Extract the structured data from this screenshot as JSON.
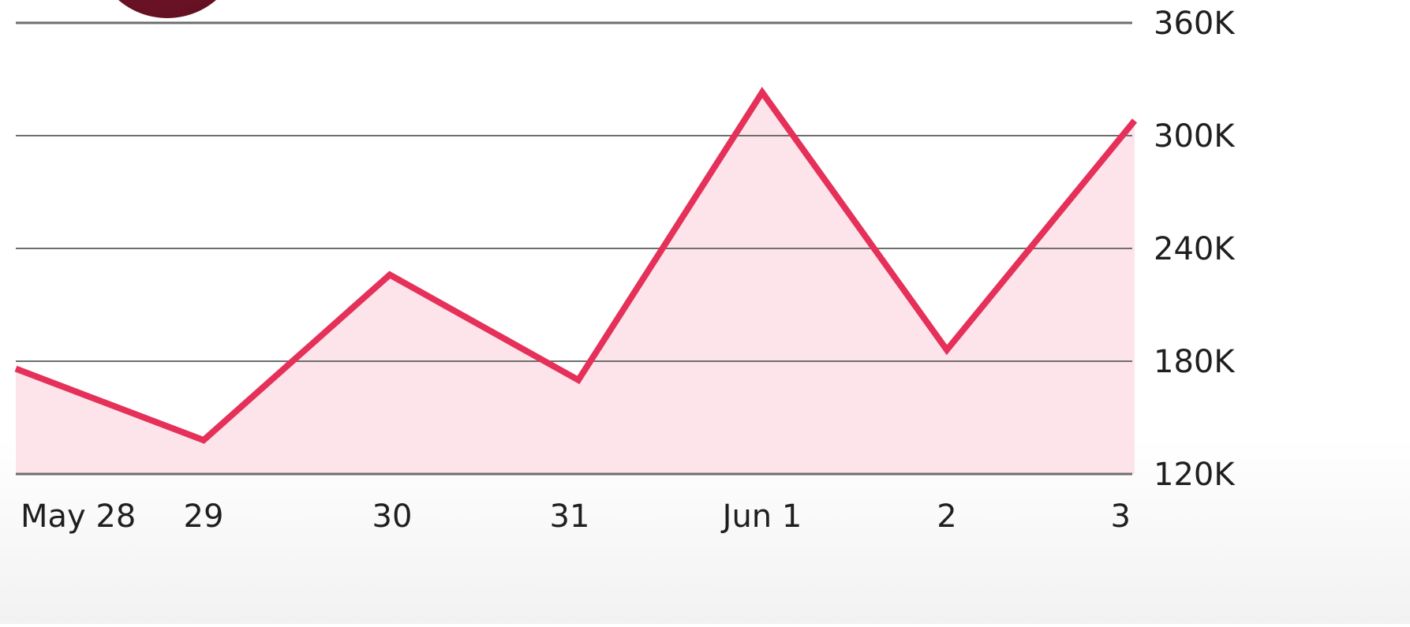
{
  "colors": {
    "line": "#e5315a",
    "area_fill": "#fde4ea",
    "grid": "#6e6e6e",
    "text": "#1f1f1f",
    "badge_dark": "#5e0f20",
    "badge_mid": "#8a1a33"
  },
  "chart_data": {
    "type": "area",
    "categories": [
      "May 28",
      "29",
      "30",
      "31",
      "Jun 1",
      "2",
      "3"
    ],
    "values": [
      176000,
      138000,
      226000,
      170000,
      323000,
      186000,
      308000
    ],
    "ylim": [
      120000,
      360000
    ],
    "y_ticks": [
      120000,
      180000,
      240000,
      300000,
      360000
    ],
    "y_tick_labels": [
      "120K",
      "180K",
      "240K",
      "300K",
      "360K"
    ],
    "y_axis_side": "right",
    "grid": true,
    "legend": "none"
  }
}
